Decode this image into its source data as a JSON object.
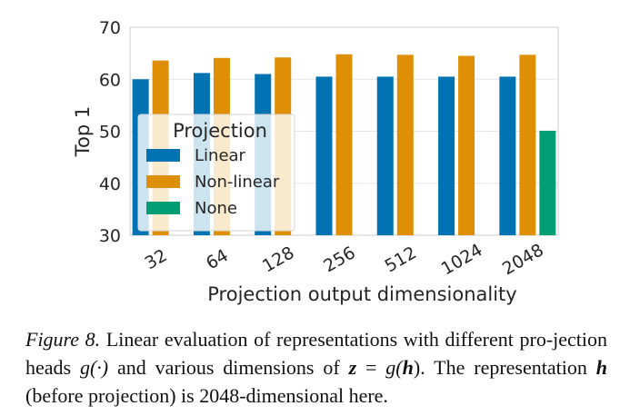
{
  "chart_data": {
    "type": "bar",
    "categories": [
      "32",
      "64",
      "128",
      "256",
      "512",
      "1024",
      "2048"
    ],
    "series": [
      {
        "name": "Linear",
        "color": "#0173b2",
        "values": [
          60.0,
          61.2,
          61.0,
          60.5,
          60.5,
          60.5,
          60.5
        ]
      },
      {
        "name": "Non-linear",
        "color": "#de8f05",
        "values": [
          63.6,
          64.1,
          64.2,
          64.8,
          64.7,
          64.5,
          64.7
        ]
      },
      {
        "name": "None",
        "color": "#029e73",
        "values": [
          null,
          null,
          null,
          null,
          null,
          null,
          50.1
        ]
      }
    ],
    "xlabel": "Projection output dimensionality",
    "ylabel": "Top 1",
    "ylim": [
      30,
      70
    ],
    "yticks": [
      30,
      40,
      50,
      60,
      70
    ],
    "legend_title": "Projection",
    "legend_position": "center-left",
    "grid": true
  },
  "caption": {
    "label": "Figure 8.",
    "text1": " Linear evaluation of representations with different pro-jection heads ",
    "g_expr": "g(·)",
    "text2": " and various dimensions of ",
    "z_expr": "z",
    "eq": " = ",
    "g2": "g(",
    "h1": "h",
    "close": ").",
    "text3": "  The representation ",
    "h2": "h",
    "text4": " (before projection) is 2048-dimensional here."
  }
}
